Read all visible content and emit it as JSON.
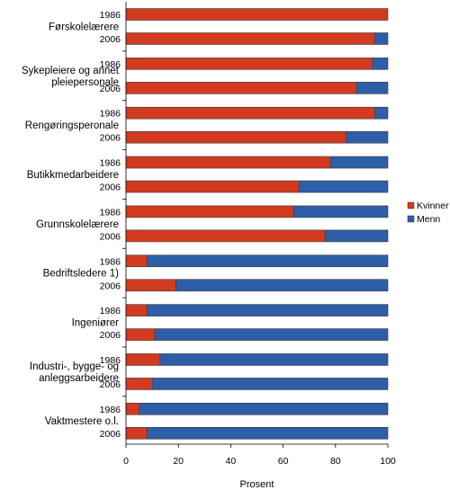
{
  "chart_data": {
    "type": "bar",
    "orientation": "horizontal",
    "stacked": true,
    "groups": [
      {
        "label": "Førskolelærere",
        "years": [
          "1986",
          "2006"
        ],
        "women": [
          100,
          95
        ]
      },
      {
        "label": "Sykepleiere og annet pleiepersonale",
        "years": [
          "1986",
          "2006"
        ],
        "women": [
          94,
          88
        ]
      },
      {
        "label": "Rengøringsperonale",
        "years": [
          "1986",
          "2006"
        ],
        "women": [
          95,
          84
        ]
      },
      {
        "label": "Butikkmedarbeidere",
        "years": [
          "1986",
          "2006"
        ],
        "women": [
          78,
          66
        ]
      },
      {
        "label": "Grunnskolelærere",
        "years": [
          "1986",
          "2006"
        ],
        "women": [
          64,
          76
        ]
      },
      {
        "label": "Bedriftsledere 1)",
        "years": [
          "1986",
          "2006"
        ],
        "women": [
          8,
          19
        ]
      },
      {
        "label": "Ingeniører",
        "years": [
          "1986",
          "2006"
        ],
        "women": [
          8,
          11
        ]
      },
      {
        "label": "Industri-, bygge- og anleggsarbeidere",
        "years": [
          "1986",
          "2006"
        ],
        "women": [
          13,
          10
        ]
      },
      {
        "label": "Vaktmestere o.l.",
        "years": [
          "1986",
          "2006"
        ],
        "women": [
          5,
          8
        ]
      }
    ],
    "series": [
      {
        "name": "Kvinner",
        "color": "#d23b1f"
      },
      {
        "name": "Menn",
        "color": "#2e5ea8"
      }
    ],
    "xlabel": "Prosent",
    "xlim": [
      0,
      100
    ],
    "xticks": [
      "0",
      "20",
      "40",
      "60",
      "80",
      "100"
    ],
    "legend_position": "right",
    "grid": false
  }
}
